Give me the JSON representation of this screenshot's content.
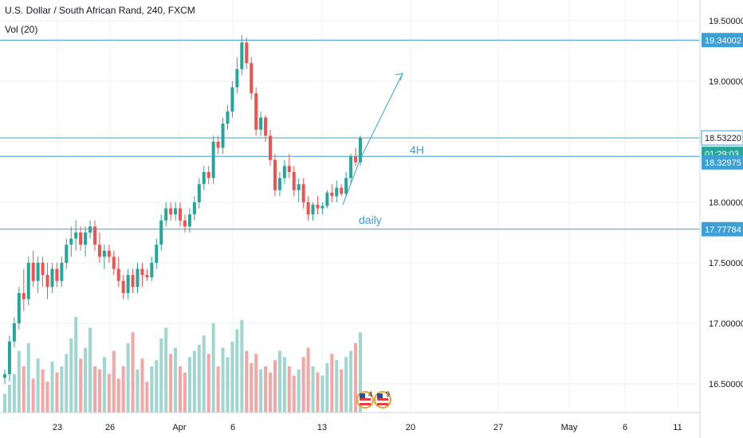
{
  "symbol_title": "U.S. Dollar / South African Rand, 240, FXCM",
  "volume_indicator": "Vol (20)",
  "colors": {
    "up": "#26a69a",
    "down": "#ef5350",
    "vol_up": "#9fd6cf",
    "vol_down": "#f3a6a4",
    "line": "#3ca0d6",
    "grid": "#eef0f4",
    "axis_text": "#131722",
    "badge_bg": "#3ca0d6",
    "badge_green": "#26a69a"
  },
  "chart_data": {
    "type": "candlestick",
    "y_ticks": [
      "19.50000",
      "19.00000",
      "18.50000",
      "18.00000",
      "17.50000",
      "17.00000",
      "16.50000"
    ],
    "y_range": [
      16.25,
      19.6
    ],
    "x_ticks": [
      "23",
      "26",
      "Apr",
      "6",
      "13",
      "20",
      "27",
      "May",
      "6",
      "11"
    ],
    "price_badges": [
      {
        "label": "19.34002",
        "value": 19.34002,
        "style": "blue"
      },
      {
        "label": "18.53220",
        "value": 18.5322,
        "style": "white"
      },
      {
        "label": "01:29:03",
        "value": 18.4,
        "style": "green"
      },
      {
        "label": "18.32975",
        "value": 18.32975,
        "style": "blue"
      },
      {
        "label": "17.77784",
        "value": 17.77784,
        "style": "blue"
      }
    ],
    "horizontal_lines": [
      19.34002,
      18.5322,
      18.38,
      17.77784
    ],
    "annotations": [
      {
        "text": "4H",
        "near_value": 18.38
      },
      {
        "text": "daily",
        "near_value": 17.77784
      }
    ],
    "event_badges": [
      {
        "text": "4"
      },
      {
        "text": "9"
      }
    ],
    "candles": [
      [
        16.55,
        16.62,
        16.5,
        16.58
      ],
      [
        16.58,
        16.9,
        16.52,
        16.85
      ],
      [
        16.85,
        17.05,
        16.8,
        17.0
      ],
      [
        17.0,
        17.3,
        16.95,
        17.25
      ],
      [
        17.25,
        17.45,
        17.1,
        17.2
      ],
      [
        17.2,
        17.55,
        17.15,
        17.5
      ],
      [
        17.5,
        17.6,
        17.3,
        17.35
      ],
      [
        17.35,
        17.55,
        17.25,
        17.5
      ],
      [
        17.5,
        17.55,
        17.3,
        17.4
      ],
      [
        17.4,
        17.5,
        17.2,
        17.3
      ],
      [
        17.3,
        17.5,
        17.25,
        17.45
      ],
      [
        17.45,
        17.5,
        17.3,
        17.35
      ],
      [
        17.35,
        17.55,
        17.3,
        17.5
      ],
      [
        17.5,
        17.7,
        17.45,
        17.65
      ],
      [
        17.65,
        17.8,
        17.55,
        17.7
      ],
      [
        17.7,
        17.85,
        17.6,
        17.75
      ],
      [
        17.75,
        17.8,
        17.6,
        17.65
      ],
      [
        17.65,
        17.8,
        17.55,
        17.75
      ],
      [
        17.75,
        17.85,
        17.7,
        17.8
      ],
      [
        17.8,
        17.85,
        17.6,
        17.65
      ],
      [
        17.65,
        17.75,
        17.5,
        17.55
      ],
      [
        17.55,
        17.65,
        17.45,
        17.6
      ],
      [
        17.6,
        17.65,
        17.5,
        17.55
      ],
      [
        17.55,
        17.6,
        17.4,
        17.45
      ],
      [
        17.45,
        17.55,
        17.3,
        17.35
      ],
      [
        17.35,
        17.4,
        17.2,
        17.25
      ],
      [
        17.25,
        17.45,
        17.2,
        17.4
      ],
      [
        17.4,
        17.45,
        17.25,
        17.3
      ],
      [
        17.3,
        17.5,
        17.25,
        17.45
      ],
      [
        17.45,
        17.5,
        17.3,
        17.4
      ],
      [
        17.4,
        17.45,
        17.35,
        17.38
      ],
      [
        17.38,
        17.55,
        17.35,
        17.5
      ],
      [
        17.5,
        17.7,
        17.45,
        17.65
      ],
      [
        17.65,
        17.9,
        17.6,
        17.85
      ],
      [
        17.85,
        18.0,
        17.8,
        17.95
      ],
      [
        17.95,
        18.0,
        17.85,
        17.9
      ],
      [
        17.9,
        18.0,
        17.85,
        17.95
      ],
      [
        17.95,
        18.0,
        17.8,
        17.85
      ],
      [
        17.85,
        17.9,
        17.75,
        17.8
      ],
      [
        17.8,
        17.95,
        17.75,
        17.9
      ],
      [
        17.9,
        18.05,
        17.85,
        18.0
      ],
      [
        18.0,
        18.2,
        17.95,
        18.15
      ],
      [
        18.15,
        18.3,
        18.1,
        18.25
      ],
      [
        18.25,
        18.3,
        18.15,
        18.2
      ],
      [
        18.2,
        18.55,
        18.15,
        18.5
      ],
      [
        18.5,
        18.55,
        18.4,
        18.45
      ],
      [
        18.45,
        18.7,
        18.4,
        18.65
      ],
      [
        18.65,
        18.8,
        18.6,
        18.75
      ],
      [
        18.75,
        19.0,
        18.7,
        18.95
      ],
      [
        18.95,
        19.2,
        18.9,
        19.1
      ],
      [
        19.1,
        19.38,
        19.05,
        19.32
      ],
      [
        19.32,
        19.36,
        19.1,
        19.15
      ],
      [
        19.15,
        19.2,
        18.85,
        18.9
      ],
      [
        18.9,
        18.95,
        18.55,
        18.6
      ],
      [
        18.6,
        18.75,
        18.55,
        18.7
      ],
      [
        18.7,
        18.72,
        18.5,
        18.55
      ],
      [
        18.55,
        18.6,
        18.3,
        18.35
      ],
      [
        18.35,
        18.4,
        18.05,
        18.1
      ],
      [
        18.1,
        18.25,
        18.05,
        18.2
      ],
      [
        18.2,
        18.35,
        18.15,
        18.3
      ],
      [
        18.3,
        18.4,
        18.2,
        18.25
      ],
      [
        18.25,
        18.3,
        18.05,
        18.1
      ],
      [
        18.1,
        18.2,
        18.0,
        18.15
      ],
      [
        18.15,
        18.2,
        17.95,
        18.0
      ],
      [
        18.0,
        18.05,
        17.85,
        17.9
      ],
      [
        17.9,
        18.0,
        17.85,
        17.98
      ],
      [
        17.98,
        18.05,
        17.9,
        17.95
      ],
      [
        17.95,
        18.0,
        17.9,
        17.97
      ],
      [
        17.97,
        18.1,
        17.95,
        18.08
      ],
      [
        18.08,
        18.15,
        18.0,
        18.05
      ],
      [
        18.05,
        18.18,
        18.0,
        18.12
      ],
      [
        18.12,
        18.15,
        18.05,
        18.07
      ],
      [
        18.07,
        18.25,
        18.05,
        18.2
      ],
      [
        18.2,
        18.4,
        18.15,
        18.38
      ],
      [
        18.38,
        18.45,
        18.3,
        18.33
      ],
      [
        18.33,
        18.55,
        18.3,
        18.53
      ]
    ],
    "volumes": [
      12,
      18,
      25,
      40,
      30,
      45,
      22,
      35,
      28,
      20,
      33,
      26,
      30,
      38,
      48,
      62,
      35,
      42,
      55,
      30,
      28,
      36,
      25,
      40,
      22,
      30,
      45,
      52,
      28,
      35,
      20,
      30,
      34,
      48,
      55,
      38,
      42,
      30,
      26,
      36,
      40,
      44,
      50,
      38,
      58,
      30,
      42,
      36,
      46,
      54,
      60,
      40,
      32,
      38,
      28,
      30,
      26,
      34,
      40,
      36,
      30,
      24,
      28,
      36,
      42,
      30,
      26,
      24,
      32,
      38,
      34,
      28,
      36,
      40,
      45,
      52
    ]
  }
}
